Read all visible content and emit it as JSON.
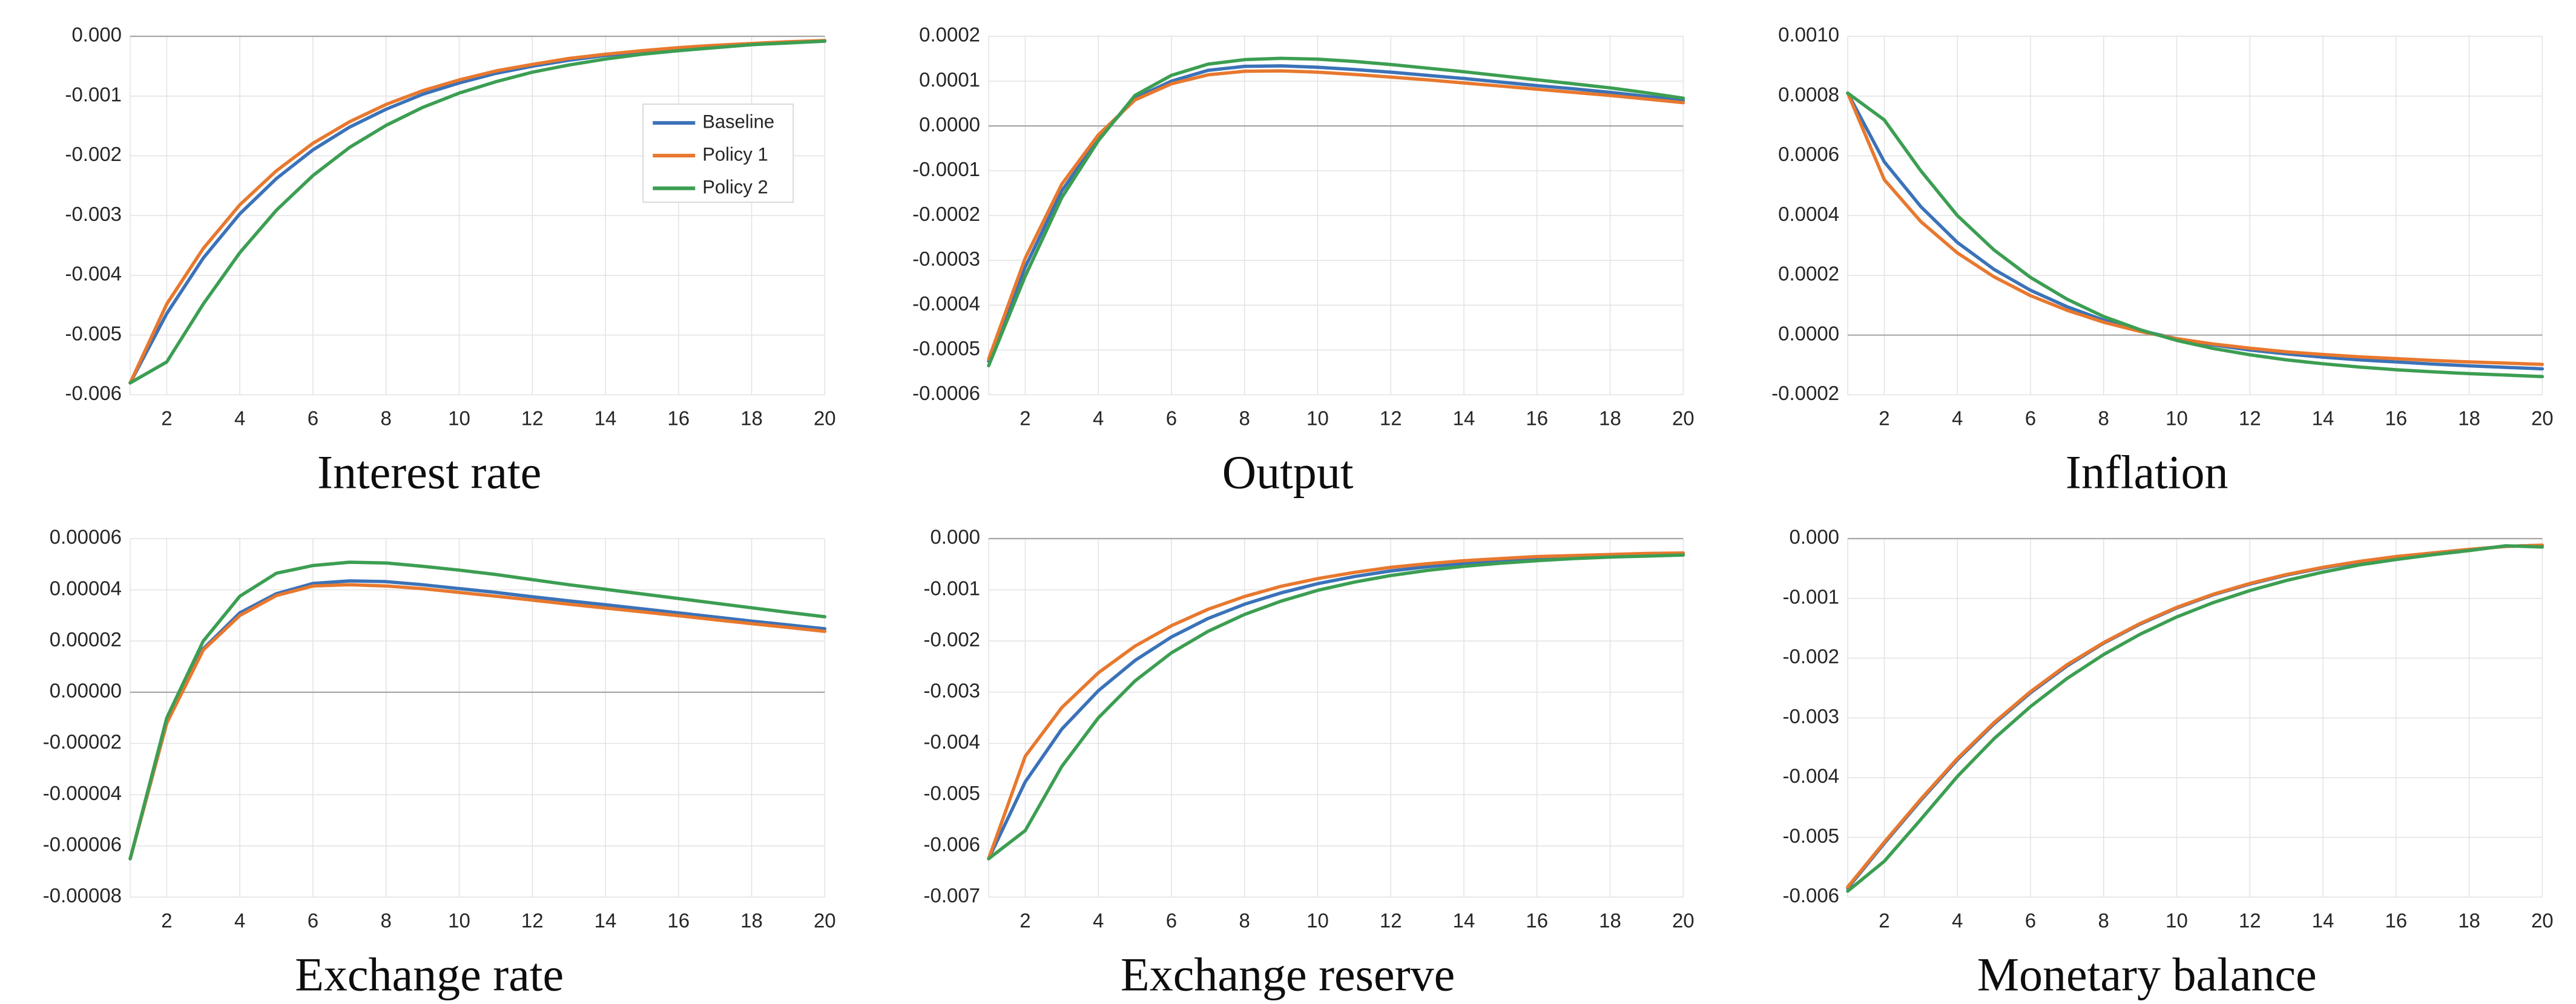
{
  "figure": {
    "background": "#ffffff",
    "grid_color": "#e2e2e2",
    "zero_line_color": "#a6a6a6",
    "tick_text_color": "#262626"
  },
  "legend": {
    "location": "inside-first-chart",
    "entries": [
      {
        "label": "Baseline",
        "color": "#3b72b8"
      },
      {
        "label": "Policy 1",
        "color": "#e8782e"
      },
      {
        "label": "Policy 2",
        "color": "#3c9e52"
      }
    ]
  },
  "chart_data": [
    {
      "type": "line",
      "title": "Interest rate",
      "x": [
        1,
        2,
        3,
        4,
        5,
        6,
        7,
        8,
        9,
        10,
        11,
        12,
        13,
        14,
        15,
        16,
        17,
        18,
        19,
        20
      ],
      "x_ticks": [
        2,
        4,
        6,
        8,
        10,
        12,
        14,
        16,
        18,
        20
      ],
      "xlim": [
        1,
        20
      ],
      "ylim": [
        -0.006,
        0.0
      ],
      "y_ticks": [
        0.0,
        -0.001,
        -0.002,
        -0.003,
        -0.004,
        -0.005,
        -0.006
      ],
      "y_tick_labels": [
        "0.000",
        "-0.001",
        "-0.002",
        "-0.003",
        "-0.004",
        "-0.005",
        "-0.006"
      ],
      "grid": true,
      "show_legend": true,
      "series": [
        {
          "name": "Baseline",
          "color": "#3b72b8",
          "values": [
            -0.0058,
            -0.00464,
            -0.00371,
            -0.00297,
            -0.00238,
            -0.0019,
            -0.00152,
            -0.00122,
            -0.00097,
            -0.00078,
            -0.00062,
            -0.0005,
            -0.0004,
            -0.00032,
            -0.00026,
            -0.0002,
            -0.00016,
            -0.00013,
            -0.0001,
            -8e-05
          ]
        },
        {
          "name": "Policy 1",
          "color": "#e8782e",
          "values": [
            -0.0058,
            -0.00448,
            -0.00355,
            -0.00282,
            -0.00225,
            -0.00179,
            -0.00143,
            -0.00114,
            -0.00091,
            -0.00073,
            -0.00058,
            -0.00047,
            -0.00037,
            -0.0003,
            -0.00024,
            -0.00019,
            -0.00015,
            -0.00012,
            -9e-05,
            -7e-05
          ]
        },
        {
          "name": "Policy 2",
          "color": "#3c9e52",
          "values": [
            -0.0058,
            -0.00545,
            -0.00448,
            -0.00362,
            -0.00291,
            -0.00233,
            -0.00186,
            -0.00149,
            -0.00119,
            -0.00095,
            -0.00076,
            -0.0006,
            -0.00048,
            -0.00038,
            -0.0003,
            -0.00024,
            -0.00019,
            -0.00014,
            -0.00011,
            -8e-05
          ]
        }
      ]
    },
    {
      "type": "line",
      "title": "Output",
      "x": [
        1,
        2,
        3,
        4,
        5,
        6,
        7,
        8,
        9,
        10,
        11,
        12,
        13,
        14,
        15,
        16,
        17,
        18,
        19,
        20
      ],
      "x_ticks": [
        2,
        4,
        6,
        8,
        10,
        12,
        14,
        16,
        18,
        20
      ],
      "xlim": [
        1,
        20
      ],
      "ylim": [
        -0.0006,
        0.0002
      ],
      "y_ticks": [
        0.0002,
        0.0001,
        0.0,
        -0.0001,
        -0.0002,
        -0.0003,
        -0.0004,
        -0.0005,
        -0.0006
      ],
      "y_tick_labels": [
        "0.0002",
        "0.0001",
        "0.0000",
        "-0.0001",
        "-0.0002",
        "-0.0003",
        "-0.0004",
        "-0.0005",
        "-0.0006"
      ],
      "grid": true,
      "show_legend": false,
      "series": [
        {
          "name": "Baseline",
          "color": "#3b72b8",
          "values": [
            -0.000525,
            -0.000315,
            -0.000145,
            -2.8e-05,
            6.2e-05,
            0.0001,
            0.000124,
            0.000133,
            0.000134,
            0.000131,
            0.000126,
            0.00012,
            0.000113,
            0.000106,
            9.8e-05,
            9e-05,
            8.3e-05,
            7.5e-05,
            6.6e-05,
            5.7e-05
          ]
        },
        {
          "name": "Policy 1",
          "color": "#e8782e",
          "values": [
            -0.00052,
            -0.000295,
            -0.00013,
            -2e-05,
            5.8e-05,
            9.4e-05,
            0.000114,
            0.000122,
            0.000123,
            0.00012,
            0.000115,
            0.000109,
            0.000103,
            9.6e-05,
            8.9e-05,
            8.2e-05,
            7.5e-05,
            6.8e-05,
            6e-05,
            5.2e-05
          ]
        },
        {
          "name": "Policy 2",
          "color": "#3c9e52",
          "values": [
            -0.000535,
            -0.000335,
            -0.00016,
            -3.3e-05,
            6.8e-05,
            0.000113,
            0.000138,
            0.000148,
            0.000151,
            0.000149,
            0.000144,
            0.000137,
            0.000129,
            0.000121,
            0.000112,
            0.000103,
            9.4e-05,
            8.5e-05,
            7.4e-05,
            6.2e-05
          ]
        }
      ]
    },
    {
      "type": "line",
      "title": "Inflation",
      "x": [
        1,
        2,
        3,
        4,
        5,
        6,
        7,
        8,
        9,
        10,
        11,
        12,
        13,
        14,
        15,
        16,
        17,
        18,
        19,
        20
      ],
      "x_ticks": [
        2,
        4,
        6,
        8,
        10,
        12,
        14,
        16,
        18,
        20
      ],
      "xlim": [
        1,
        20
      ],
      "ylim": [
        -0.0002,
        0.001
      ],
      "y_ticks": [
        0.001,
        0.0008,
        0.0006,
        0.0004,
        0.0002,
        0.0,
        -0.0002
      ],
      "y_tick_labels": [
        "0.0010",
        "0.0008",
        "0.0006",
        "0.0004",
        "0.0002",
        "0.0000",
        "-0.0002"
      ],
      "grid": true,
      "show_legend": false,
      "series": [
        {
          "name": "Baseline",
          "color": "#3b72b8",
          "values": [
            0.00081,
            0.00058,
            0.00043,
            0.00031,
            0.00022,
            0.00015,
            9.5e-05,
            5e-05,
            1.5e-05,
            -1.2e-05,
            -3.3e-05,
            -5e-05,
            -6.3e-05,
            -7.4e-05,
            -8.3e-05,
            -9e-05,
            -9.7e-05,
            -0.000103,
            -0.000108,
            -0.000113
          ]
        },
        {
          "name": "Policy 1",
          "color": "#e8782e",
          "values": [
            0.00081,
            0.00052,
            0.00038,
            0.000275,
            0.000195,
            0.000132,
            8.3e-05,
            4.3e-05,
            1.2e-05,
            -1.2e-05,
            -3e-05,
            -4.4e-05,
            -5.6e-05,
            -6.5e-05,
            -7.3e-05,
            -7.9e-05,
            -8.5e-05,
            -9e-05,
            -9.4e-05,
            -9.8e-05
          ]
        },
        {
          "name": "Policy 2",
          "color": "#3c9e52",
          "values": [
            0.00081,
            0.00072,
            0.00055,
            0.0004,
            0.000285,
            0.000193,
            0.00012,
            6.2e-05,
            1.8e-05,
            -1.8e-05,
            -4.5e-05,
            -6.6e-05,
            -8.3e-05,
            -9.6e-05,
            -0.000107,
            -0.000116,
            -0.000123,
            -0.000129,
            -0.000134,
            -0.000139
          ]
        }
      ]
    },
    {
      "type": "line",
      "title": "Exchange rate",
      "x": [
        1,
        2,
        3,
        4,
        5,
        6,
        7,
        8,
        9,
        10,
        11,
        12,
        13,
        14,
        15,
        16,
        17,
        18,
        19,
        20
      ],
      "x_ticks": [
        2,
        4,
        6,
        8,
        10,
        12,
        14,
        16,
        18,
        20
      ],
      "xlim": [
        1,
        20
      ],
      "ylim": [
        -8e-05,
        6e-05
      ],
      "y_ticks": [
        6e-05,
        4e-05,
        2e-05,
        0.0,
        -2e-05,
        -4e-05,
        -6e-05,
        -8e-05
      ],
      "y_tick_labels": [
        "0.00006",
        "0.00004",
        "0.00002",
        "0.00000",
        "-0.00002",
        "-0.00004",
        "-0.00006",
        "-0.00008"
      ],
      "grid": true,
      "show_legend": false,
      "series": [
        {
          "name": "Baseline",
          "color": "#3b72b8",
          "values": [
            -6.5e-05,
            -1.2e-05,
            1.7e-05,
            3.1e-05,
            3.85e-05,
            4.25e-05,
            4.35e-05,
            4.32e-05,
            4.2e-05,
            4.05e-05,
            3.9e-05,
            3.73e-05,
            3.57e-05,
            3.42e-05,
            3.26e-05,
            3.1e-05,
            2.94e-05,
            2.78e-05,
            2.63e-05,
            2.48e-05
          ]
        },
        {
          "name": "Policy 1",
          "color": "#e8782e",
          "values": [
            -6.5e-05,
            -1.2e-05,
            1.65e-05,
            3e-05,
            3.78e-05,
            4.15e-05,
            4.2e-05,
            4.15e-05,
            4.05e-05,
            3.9e-05,
            3.75e-05,
            3.6e-05,
            3.44e-05,
            3.29e-05,
            3.14e-05,
            2.99e-05,
            2.83e-05,
            2.68e-05,
            2.53e-05,
            2.38e-05
          ]
        },
        {
          "name": "Policy 2",
          "color": "#3c9e52",
          "values": [
            -6.5e-05,
            -1e-05,
            2e-05,
            3.75e-05,
            4.65e-05,
            4.95e-05,
            5.08e-05,
            5.05e-05,
            4.92e-05,
            4.77e-05,
            4.6e-05,
            4.4e-05,
            4.2e-05,
            4.02e-05,
            3.84e-05,
            3.66e-05,
            3.48e-05,
            3.3e-05,
            3.12e-05,
            2.95e-05
          ]
        }
      ]
    },
    {
      "type": "line",
      "title": "Exchange reserve",
      "x": [
        1,
        2,
        3,
        4,
        5,
        6,
        7,
        8,
        9,
        10,
        11,
        12,
        13,
        14,
        15,
        16,
        17,
        18,
        19,
        20
      ],
      "x_ticks": [
        2,
        4,
        6,
        8,
        10,
        12,
        14,
        16,
        18,
        20
      ],
      "xlim": [
        1,
        20
      ],
      "ylim": [
        -0.007,
        0.0
      ],
      "y_ticks": [
        0.0,
        -0.001,
        -0.002,
        -0.003,
        -0.004,
        -0.005,
        -0.006,
        -0.007
      ],
      "y_tick_labels": [
        "0.000",
        "-0.001",
        "-0.002",
        "-0.003",
        "-0.004",
        "-0.005",
        "-0.006",
        "-0.007"
      ],
      "grid": true,
      "show_legend": false,
      "series": [
        {
          "name": "Baseline",
          "color": "#3b72b8",
          "values": [
            -0.00625,
            -0.00475,
            -0.00372,
            -0.00297,
            -0.00238,
            -0.00192,
            -0.00156,
            -0.00128,
            -0.00106,
            -0.00088,
            -0.00074,
            -0.00063,
            -0.00055,
            -0.00048,
            -0.00043,
            -0.00039,
            -0.00036,
            -0.00033,
            -0.00031,
            -0.0003
          ]
        },
        {
          "name": "Policy 1",
          "color": "#e8782e",
          "values": [
            -0.00625,
            -0.00425,
            -0.0033,
            -0.00262,
            -0.0021,
            -0.0017,
            -0.00138,
            -0.00113,
            -0.00093,
            -0.00078,
            -0.00066,
            -0.00056,
            -0.00049,
            -0.00043,
            -0.00039,
            -0.00035,
            -0.00033,
            -0.00031,
            -0.00029,
            -0.00028
          ]
        },
        {
          "name": "Policy 2",
          "color": "#3c9e52",
          "values": [
            -0.00625,
            -0.0057,
            -0.00445,
            -0.0035,
            -0.00278,
            -0.00223,
            -0.00181,
            -0.00148,
            -0.00122,
            -0.00101,
            -0.00085,
            -0.00072,
            -0.00062,
            -0.00054,
            -0.00048,
            -0.00043,
            -0.00039,
            -0.00036,
            -0.00034,
            -0.00032
          ]
        }
      ]
    },
    {
      "type": "line",
      "title": "Monetary balance",
      "x": [
        1,
        2,
        3,
        4,
        5,
        6,
        7,
        8,
        9,
        10,
        11,
        12,
        13,
        14,
        15,
        16,
        17,
        18,
        19,
        20
      ],
      "x_ticks": [
        2,
        4,
        6,
        8,
        10,
        12,
        14,
        16,
        18,
        20
      ],
      "xlim": [
        1,
        20
      ],
      "ylim": [
        -0.006,
        0.0
      ],
      "y_ticks": [
        0.0,
        -0.001,
        -0.002,
        -0.003,
        -0.004,
        -0.005,
        -0.006
      ],
      "y_tick_labels": [
        "0.000",
        "-0.001",
        "-0.002",
        "-0.003",
        "-0.004",
        "-0.005",
        "-0.006"
      ],
      "grid": true,
      "show_legend": false,
      "series": [
        {
          "name": "Baseline",
          "color": "#3b72b8",
          "values": [
            -0.00585,
            -0.0051,
            -0.00438,
            -0.0037,
            -0.0031,
            -0.00258,
            -0.00213,
            -0.00175,
            -0.00143,
            -0.00116,
            -0.00094,
            -0.00076,
            -0.00061,
            -0.00049,
            -0.00039,
            -0.00031,
            -0.00024,
            -0.00018,
            -0.00013,
            -0.00011
          ]
        },
        {
          "name": "Policy 1",
          "color": "#e8782e",
          "values": [
            -0.00583,
            -0.00508,
            -0.00436,
            -0.00368,
            -0.00308,
            -0.00256,
            -0.00211,
            -0.00174,
            -0.00142,
            -0.00115,
            -0.00093,
            -0.00075,
            -0.0006,
            -0.00048,
            -0.00038,
            -0.0003,
            -0.00024,
            -0.00018,
            -0.00013,
            -0.00011
          ]
        },
        {
          "name": "Policy 2",
          "color": "#3c9e52",
          "values": [
            -0.0059,
            -0.0054,
            -0.0047,
            -0.00398,
            -0.00335,
            -0.00281,
            -0.00234,
            -0.00194,
            -0.0016,
            -0.00131,
            -0.00107,
            -0.00087,
            -0.0007,
            -0.00056,
            -0.00044,
            -0.00035,
            -0.00027,
            -0.0002,
            -0.00012,
            -0.00014
          ]
        }
      ]
    }
  ]
}
